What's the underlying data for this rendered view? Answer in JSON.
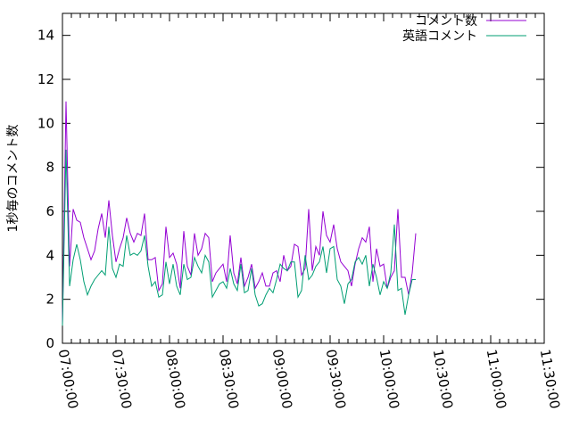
{
  "chart_data": {
    "type": "line",
    "ylabel": "1秒毎のコメント数",
    "xlabel": "",
    "title": "",
    "ylim": [
      0,
      15
    ],
    "yticks": [
      0,
      2,
      4,
      6,
      8,
      10,
      12,
      14
    ],
    "xlim": [
      "07:00:00",
      "11:30:00"
    ],
    "xticks": [
      "07:00:00",
      "07:30:00",
      "08:00:00",
      "08:30:00",
      "09:00:00",
      "09:30:00",
      "10:00:00",
      "10:30:00",
      "11:00:00",
      "11:30:00"
    ],
    "x_step_minutes": 2,
    "grid": false,
    "legend_position": "top-right",
    "series": [
      {
        "name": "コメント数",
        "color": "#9400d3",
        "values": [
          0.9,
          11.0,
          3.5,
          6.1,
          5.6,
          5.5,
          4.8,
          4.3,
          3.8,
          4.2,
          5.2,
          5.9,
          4.8,
          6.5,
          4.9,
          3.7,
          4.3,
          4.8,
          5.7,
          5.0,
          4.6,
          5.0,
          4.9,
          5.9,
          3.8,
          3.8,
          3.9,
          2.4,
          2.7,
          5.3,
          3.9,
          4.1,
          3.6,
          2.5,
          5.1,
          3.5,
          3.1,
          5.0,
          4.0,
          4.3,
          5.0,
          4.8,
          2.8,
          3.2,
          3.4,
          3.6,
          2.8,
          4.9,
          3.2,
          2.7,
          3.9,
          2.6,
          3.0,
          3.6,
          2.5,
          2.8,
          3.2,
          2.6,
          2.6,
          3.2,
          3.3,
          2.8,
          4.0,
          3.3,
          3.5,
          4.5,
          4.4,
          3.1,
          3.4,
          6.1,
          3.3,
          4.4,
          4.0,
          6.0,
          4.9,
          4.6,
          5.4,
          4.3,
          3.7,
          3.5,
          3.3,
          2.6,
          3.6,
          4.3,
          4.8,
          4.6,
          5.3,
          2.8,
          4.3,
          3.5,
          3.6,
          2.5,
          3.0,
          3.3,
          6.1,
          3.0,
          3.0,
          2.2,
          3.2,
          5.0
        ]
      },
      {
        "name": "英語コメント",
        "color": "#009e73",
        "values": [
          0.8,
          8.8,
          2.6,
          3.8,
          4.5,
          3.8,
          2.8,
          2.2,
          2.6,
          2.9,
          3.1,
          3.3,
          3.1,
          5.3,
          3.4,
          3.0,
          3.6,
          3.5,
          4.9,
          4.0,
          4.1,
          4.0,
          4.2,
          4.9,
          3.5,
          2.6,
          2.8,
          2.1,
          2.2,
          3.7,
          2.7,
          3.6,
          2.6,
          2.2,
          3.6,
          2.9,
          3.0,
          3.9,
          3.5,
          3.2,
          4.0,
          3.7,
          2.1,
          2.4,
          2.7,
          2.8,
          2.5,
          3.4,
          2.7,
          2.4,
          3.6,
          2.3,
          2.4,
          3.4,
          2.2,
          1.7,
          1.8,
          2.2,
          2.5,
          2.3,
          2.9,
          3.6,
          3.4,
          3.3,
          3.7,
          3.7,
          2.1,
          2.4,
          4.0,
          2.9,
          3.1,
          3.5,
          3.7,
          4.4,
          3.2,
          4.3,
          4.4,
          2.9,
          2.6,
          1.8,
          2.7,
          2.9,
          3.7,
          3.9,
          3.6,
          4.0,
          2.6,
          3.6,
          3.0,
          2.2,
          2.8,
          2.5,
          3.2,
          5.4,
          2.4,
          2.5,
          1.3,
          2.2,
          2.9,
          2.9
        ]
      }
    ]
  }
}
